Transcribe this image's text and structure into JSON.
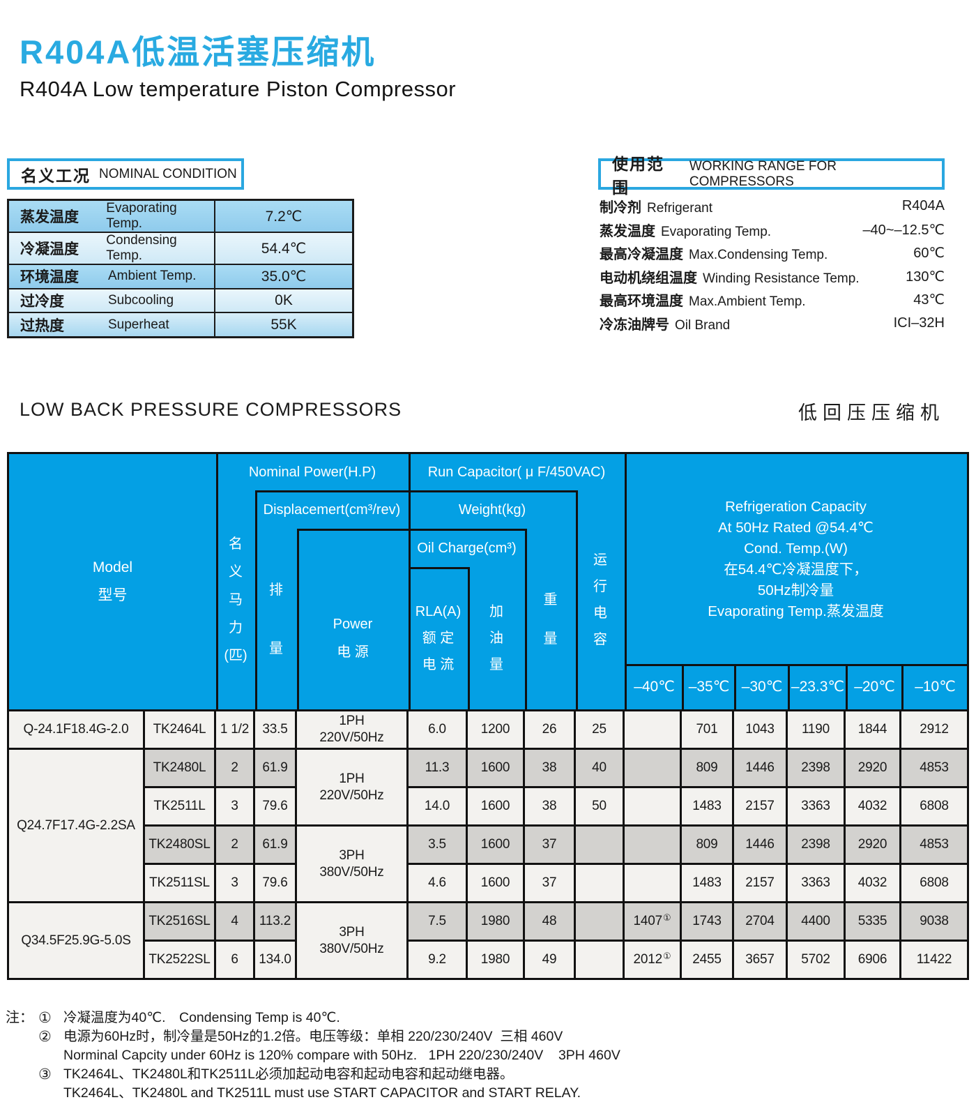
{
  "page": {
    "title_zh": "R404A低温活塞压缩机",
    "title_en": "R404A Low temperature Piston Compressor"
  },
  "nominal": {
    "title_zh": "名义工况",
    "title_en": "NOMINAL CONDITION",
    "rows": [
      {
        "zh": "蒸发温度",
        "en": "Evaporating Temp.",
        "value": "7.2℃"
      },
      {
        "zh": "冷凝温度",
        "en": "Condensing Temp.",
        "value": "54.4℃"
      },
      {
        "zh": "环境温度",
        "en": "Ambient Temp.",
        "value": "35.0℃"
      },
      {
        "zh": "过冷度",
        "en": "Subcooling",
        "value": "0K"
      },
      {
        "zh": "过热度",
        "en": "Superheat",
        "value": "55K"
      }
    ]
  },
  "working_range": {
    "title_zh": "使用范围",
    "title_en": "WORKING RANGE FOR COMPRESSORS",
    "rows": [
      {
        "zh": "制冷剂",
        "en": "Refrigerant",
        "value": "R404A"
      },
      {
        "zh": "蒸发温度",
        "en": "Evaporating Temp.",
        "value": "–40~–12.5℃"
      },
      {
        "zh": "最高冷凝温度",
        "en": "Max.Condensing Temp.",
        "value": "60℃"
      },
      {
        "zh": "电动机绕组温度",
        "en": "Winding Resistance Temp.",
        "value": "130℃"
      },
      {
        "zh": "最高环境温度",
        "en": "Max.Ambient Temp.",
        "value": "43℃"
      },
      {
        "zh": "冷冻油牌号",
        "en": "Oil Brand",
        "value": "ICI–32H"
      }
    ]
  },
  "section": {
    "title_en": "LOW BACK PRESSURE COMPRESSORS",
    "title_zh": "低回压压缩机"
  },
  "table": {
    "header": {
      "model": [
        "Model",
        "型号"
      ],
      "nominal_power": "Nominal Power(H.P)",
      "run_capacitor": "Run Capacitor( μ F/450VAC)",
      "displacement": "Displacemert(cm³/rev)",
      "weight": "Weight(kg)",
      "oil_charge": "Oil Charge(cm³)",
      "hp_v": [
        "名",
        "义",
        "马",
        "力",
        "(匹)"
      ],
      "displacement_v": [
        "排",
        "量"
      ],
      "power_v": [
        "Power",
        "电 源"
      ],
      "rla_v": [
        "RLA(A)",
        "额 定",
        "电 流"
      ],
      "oil_v": [
        "加",
        "油",
        "量"
      ],
      "weight_v": [
        "重",
        "量"
      ],
      "capacitor_v": [
        "运",
        "行",
        "电",
        "容"
      ],
      "refrigeration": [
        "Refrigeration Capacity",
        "At 50Hz Rated @54.4℃",
        "Cond. Temp.(W)",
        "在54.4℃冷凝温度下，",
        "50Hz制冷量",
        "Evaporating Temp.蒸发温度"
      ],
      "temps": [
        "–40℃",
        "–35℃",
        "–30℃",
        "–23.3℃",
        "–20℃",
        "–10℃"
      ]
    },
    "groups": [
      {
        "model": "Q-24.1F18.4G-2.0",
        "row_count": 1
      },
      {
        "model": "Q24.7F17.4G-2.2SA",
        "row_count": 4
      },
      {
        "model": "Q34.5F25.9G-5.0S",
        "row_count": 2
      }
    ],
    "power_cells": [
      {
        "start": 1,
        "span": 1,
        "lines": [
          "1PH",
          "220V/50Hz"
        ]
      },
      {
        "start": 2,
        "span": 2,
        "lines": [
          "1PH",
          "220V/50Hz"
        ]
      },
      {
        "start": 4,
        "span": 2,
        "lines": [
          "3PH",
          "380V/50Hz"
        ]
      },
      {
        "start": 6,
        "span": 2,
        "lines": [
          "3PH",
          "380V/50Hz"
        ]
      }
    ],
    "rows": [
      {
        "model": "TK2464L",
        "hp": "1 1/2",
        "displacement": "33.5",
        "rla": "6.0",
        "oil": "1200",
        "weight": "26",
        "capacitor": "25",
        "capacity": [
          "",
          "701",
          "1043",
          "1190",
          "1844",
          "2912"
        ]
      },
      {
        "model": "TK2480L",
        "hp": "2",
        "displacement": "61.9",
        "rla": "11.3",
        "oil": "1600",
        "weight": "38",
        "capacitor": "40",
        "capacity": [
          "",
          "809",
          "1446",
          "2398",
          "2920",
          "4853"
        ]
      },
      {
        "model": "TK2511L",
        "hp": "3",
        "displacement": "79.6",
        "rla": "14.0",
        "oil": "1600",
        "weight": "38",
        "capacitor": "50",
        "capacity": [
          "",
          "1483",
          "2157",
          "3363",
          "4032",
          "6808"
        ]
      },
      {
        "model": "TK2480SL",
        "hp": "2",
        "displacement": "61.9",
        "rla": "3.5",
        "oil": "1600",
        "weight": "37",
        "capacitor": "",
        "capacity": [
          "",
          "809",
          "1446",
          "2398",
          "2920",
          "4853"
        ]
      },
      {
        "model": "TK2511SL",
        "hp": "3",
        "displacement": "79.6",
        "rla": "4.6",
        "oil": "1600",
        "weight": "37",
        "capacitor": "",
        "capacity": [
          "",
          "1483",
          "2157",
          "3363",
          "4032",
          "6808"
        ]
      },
      {
        "model": "TK2516SL",
        "hp": "4",
        "displacement": "113.2",
        "rla": "7.5",
        "oil": "1980",
        "weight": "48",
        "capacitor": "",
        "capacity": [
          "1407①",
          "1743",
          "2704",
          "4400",
          "5335",
          "9038"
        ]
      },
      {
        "model": "TK2522SL",
        "hp": "6",
        "displacement": "134.0",
        "rla": "9.2",
        "oil": "1980",
        "weight": "49",
        "capacitor": "",
        "capacity": [
          "2012①",
          "2455",
          "3657",
          "5702",
          "6906",
          "11422"
        ]
      }
    ]
  },
  "notes": {
    "prefix": "注：",
    "items": [
      {
        "num": "①",
        "lines": [
          "冷凝温度为40℃.　Condensing Temp is 40℃."
        ]
      },
      {
        "num": "②",
        "lines": [
          "电源为60Hz时，制冷量是50Hz的1.2倍。电压等级：单相 220/230/240V  三相 460V",
          "Norminal Capcity under 60Hz is 120% compare with 50Hz.   1PH 220/230/240V    3PH 460V"
        ]
      },
      {
        "num": "③",
        "lines": [
          "TK2464L、TK2480L和TK2511L必须加起动电容和起动电容和起动继电器。",
          "TK2464L、TK2480L and TK2511L must use START CAPACITOR and START RELAY."
        ]
      }
    ]
  },
  "colors": {
    "accent_blue": "#29aae1",
    "header_blue": "#04a0e4",
    "frame_blue": "#2aa7e0",
    "row_gray": "#d3d2cf",
    "row_white": "#f3f2ef",
    "line_black": "#111111"
  }
}
